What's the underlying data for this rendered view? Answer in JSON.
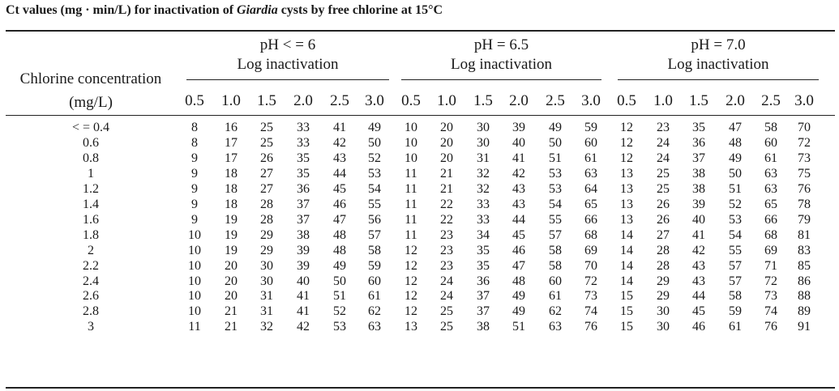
{
  "title_prefix": "Ct values (mg · min/L) for inactivation of ",
  "title_italic": "Giardia",
  "title_suffix": " cysts by free chlorine at 15°C",
  "row_header_line1": "Chlorine concentration",
  "row_header_line2": "(mg/L)",
  "subheader": "Log inactivation",
  "groups": [
    "pH < = 6",
    "pH = 6.5",
    "pH = 7.0"
  ],
  "log_levels": [
    "0.5",
    "1.0",
    "1.5",
    "2.0",
    "2.5",
    "3.0"
  ],
  "rows": [
    {
      "conc": "< = 0.4",
      "values": [
        8,
        16,
        25,
        33,
        41,
        49,
        10,
        20,
        30,
        39,
        49,
        59,
        12,
        23,
        35,
        47,
        58,
        70
      ]
    },
    {
      "conc": "0.6",
      "values": [
        8,
        17,
        25,
        33,
        42,
        50,
        10,
        20,
        30,
        40,
        50,
        60,
        12,
        24,
        36,
        48,
        60,
        72
      ]
    },
    {
      "conc": "0.8",
      "values": [
        9,
        17,
        26,
        35,
        43,
        52,
        10,
        20,
        31,
        41,
        51,
        61,
        12,
        24,
        37,
        49,
        61,
        73
      ]
    },
    {
      "conc": "1",
      "values": [
        9,
        18,
        27,
        35,
        44,
        53,
        11,
        21,
        32,
        42,
        53,
        63,
        13,
        25,
        38,
        50,
        63,
        75
      ]
    },
    {
      "conc": "1.2",
      "values": [
        9,
        18,
        27,
        36,
        45,
        54,
        11,
        21,
        32,
        43,
        53,
        64,
        13,
        25,
        38,
        51,
        63,
        76
      ]
    },
    {
      "conc": "1.4",
      "values": [
        9,
        18,
        28,
        37,
        46,
        55,
        11,
        22,
        33,
        43,
        54,
        65,
        13,
        26,
        39,
        52,
        65,
        78
      ]
    },
    {
      "conc": "1.6",
      "values": [
        9,
        19,
        28,
        37,
        47,
        56,
        11,
        22,
        33,
        44,
        55,
        66,
        13,
        26,
        40,
        53,
        66,
        79
      ]
    },
    {
      "conc": "1.8",
      "values": [
        10,
        19,
        29,
        38,
        48,
        57,
        11,
        23,
        34,
        45,
        57,
        68,
        14,
        27,
        41,
        54,
        68,
        81
      ]
    },
    {
      "conc": "2",
      "values": [
        10,
        19,
        29,
        39,
        48,
        58,
        12,
        23,
        35,
        46,
        58,
        69,
        14,
        28,
        42,
        55,
        69,
        83
      ]
    },
    {
      "conc": "2.2",
      "values": [
        10,
        20,
        30,
        39,
        49,
        59,
        12,
        23,
        35,
        47,
        58,
        70,
        14,
        28,
        43,
        57,
        71,
        85
      ]
    },
    {
      "conc": "2.4",
      "values": [
        10,
        20,
        30,
        40,
        50,
        60,
        12,
        24,
        36,
        48,
        60,
        72,
        14,
        29,
        43,
        57,
        72,
        86
      ]
    },
    {
      "conc": "2.6",
      "values": [
        10,
        20,
        31,
        41,
        51,
        61,
        12,
        24,
        37,
        49,
        61,
        73,
        15,
        29,
        44,
        58,
        73,
        88
      ]
    },
    {
      "conc": "2.8",
      "values": [
        10,
        21,
        31,
        41,
        52,
        62,
        12,
        25,
        37,
        49,
        62,
        74,
        15,
        30,
        45,
        59,
        74,
        89
      ]
    },
    {
      "conc": "3",
      "values": [
        11,
        21,
        32,
        42,
        53,
        63,
        13,
        25,
        38,
        51,
        63,
        76,
        15,
        30,
        46,
        61,
        76,
        91
      ]
    }
  ]
}
